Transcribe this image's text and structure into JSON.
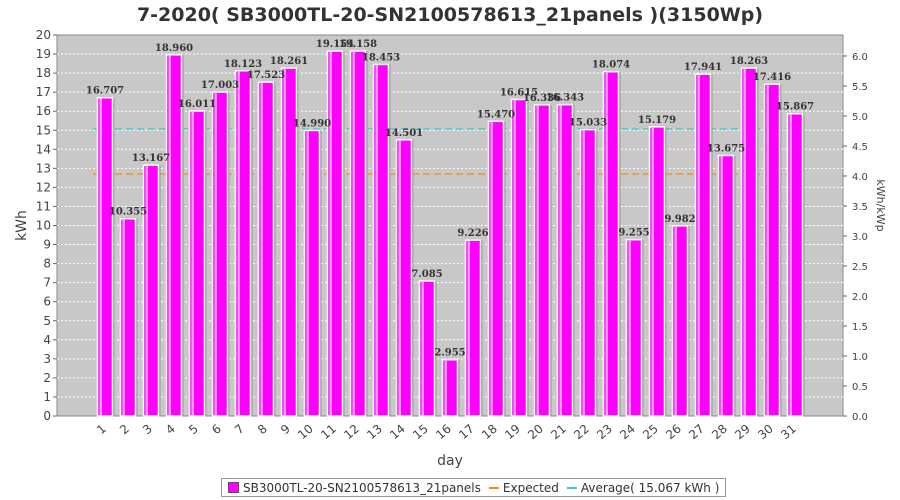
{
  "chart_data": {
    "type": "bar",
    "title": "7-2020( SB3000TL-20-SN2100578613_21panels )(3150Wp)",
    "xlabel": "day",
    "ylabel": "kWh",
    "ylabel_right": "kWh/kWp",
    "ylim": [
      0,
      20
    ],
    "yticks": [
      "0",
      "1",
      "2",
      "3",
      "4",
      "5",
      "6",
      "7",
      "8",
      "9",
      "10",
      "11",
      "12",
      "13",
      "14",
      "15",
      "16",
      "17",
      "18",
      "19",
      "20"
    ],
    "ylim_right": [
      0,
      6.35
    ],
    "yticks_right": [
      "0.0",
      "0.5",
      "1.0",
      "1.5",
      "2.0",
      "2.5",
      "3.0",
      "3.5",
      "4.0",
      "4.5",
      "5.0",
      "5.5",
      "6.0"
    ],
    "categories": [
      "1",
      "2",
      "3",
      "4",
      "5",
      "6",
      "7",
      "8",
      "9",
      "10",
      "11",
      "12",
      "13",
      "14",
      "15",
      "16",
      "17",
      "18",
      "19",
      "20",
      "21",
      "22",
      "23",
      "24",
      "25",
      "26",
      "27",
      "28",
      "29",
      "30",
      "31"
    ],
    "series": [
      {
        "name": "SB3000TL-20-SN2100578613_21panels",
        "color": "#ff00ff",
        "values": [
          16.707,
          10.355,
          13.167,
          18.96,
          16.011,
          17.003,
          18.123,
          17.523,
          18.261,
          14.99,
          19.154,
          19.158,
          18.453,
          14.501,
          7.085,
          2.955,
          9.226,
          15.47,
          16.615,
          16.336,
          16.343,
          15.033,
          18.074,
          9.255,
          15.179,
          9.982,
          17.941,
          13.675,
          18.263,
          17.416,
          15.867
        ],
        "labels": [
          "16.707",
          "10.355",
          "13.167",
          "18.960",
          "16.011",
          "17.003",
          "18.123",
          "17.523",
          "18.261",
          "14.990",
          "19.154",
          "19.158",
          "18.453",
          "14.501",
          "7.085",
          "2.955",
          "9.226",
          "15.470",
          "16.615",
          "16.336",
          "16.343",
          "15.033",
          "18.074",
          "9.255",
          "15.179",
          "9.982",
          "17.941",
          "13.675",
          "18.263",
          "17.416",
          "15.867"
        ]
      }
    ],
    "reference_lines": [
      {
        "name": "Expected",
        "value": 12.7,
        "color": "#ff8c1a",
        "style": "dashed"
      },
      {
        "name": "Average( 15.067 kWh )",
        "value": 15.067,
        "color": "#33cccc",
        "style": "dashed"
      }
    ],
    "grid": true,
    "legend_position": "bottom",
    "plot_background": "#c8c8c8"
  }
}
